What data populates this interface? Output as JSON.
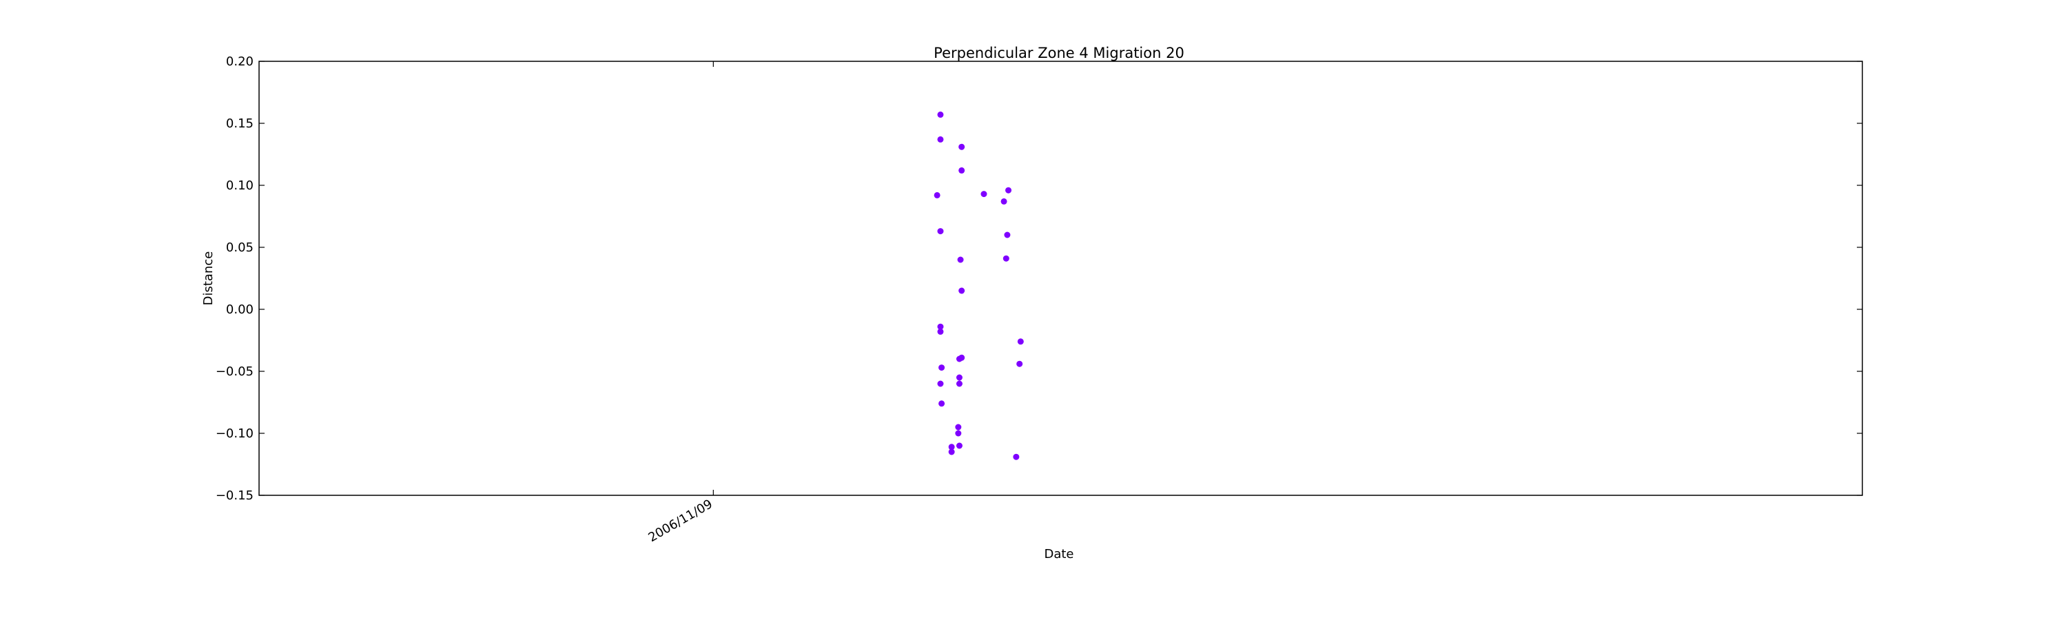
{
  "chart_data": {
    "type": "scatter",
    "title": "Perpendicular Zone 4 Migration 20",
    "xlabel": "Date",
    "ylabel": "Distance",
    "x_axis_type": "date",
    "xlim": [
      "2006-10-23",
      "2006-12-22"
    ],
    "ylim": [
      -0.15,
      0.2
    ],
    "yticks": [
      -0.15,
      -0.1,
      -0.05,
      0.0,
      0.05,
      0.1,
      0.15,
      0.2
    ],
    "ytick_labels": [
      "−0.15",
      "−0.10",
      "−0.05",
      "0.00",
      "0.05",
      "0.10",
      "0.15",
      "0.20"
    ],
    "xticks": [
      "2006-11-09"
    ],
    "xtick_labels": [
      "2006/11/09"
    ],
    "grid": false,
    "marker_color": "#7f00ff",
    "points": [
      {
        "x": "2006-11-17 12:00",
        "y": 0.157
      },
      {
        "x": "2006-11-17 12:00",
        "y": 0.137
      },
      {
        "x": "2006-11-18 07:00",
        "y": 0.131
      },
      {
        "x": "2006-11-18 07:00",
        "y": 0.112
      },
      {
        "x": "2006-11-17 09:00",
        "y": 0.092
      },
      {
        "x": "2006-11-19 03:00",
        "y": 0.093
      },
      {
        "x": "2006-11-19 21:00",
        "y": 0.087
      },
      {
        "x": "2006-11-20 01:00",
        "y": 0.096
      },
      {
        "x": "2006-11-17 12:00",
        "y": 0.063
      },
      {
        "x": "2006-11-20 00:00",
        "y": 0.06
      },
      {
        "x": "2006-11-18 06:00",
        "y": 0.04
      },
      {
        "x": "2006-11-19 23:00",
        "y": 0.041
      },
      {
        "x": "2006-11-18 07:00",
        "y": 0.015
      },
      {
        "x": "2006-11-17 12:00",
        "y": -0.014
      },
      {
        "x": "2006-11-17 12:00",
        "y": -0.018
      },
      {
        "x": "2006-11-20 12:00",
        "y": -0.026
      },
      {
        "x": "2006-11-18 05:00",
        "y": -0.04
      },
      {
        "x": "2006-11-18 07:00",
        "y": -0.039
      },
      {
        "x": "2006-11-17 13:00",
        "y": -0.047
      },
      {
        "x": "2006-11-20 11:00",
        "y": -0.044
      },
      {
        "x": "2006-11-18 05:00",
        "y": -0.055
      },
      {
        "x": "2006-11-17 12:00",
        "y": -0.06
      },
      {
        "x": "2006-11-18 05:00",
        "y": -0.06
      },
      {
        "x": "2006-11-17 13:00",
        "y": -0.076
      },
      {
        "x": "2006-11-18 04:00",
        "y": -0.095
      },
      {
        "x": "2006-11-18 04:00",
        "y": -0.1
      },
      {
        "x": "2006-11-17 22:00",
        "y": -0.111
      },
      {
        "x": "2006-11-18 05:00",
        "y": -0.11
      },
      {
        "x": "2006-11-17 22:00",
        "y": -0.115
      },
      {
        "x": "2006-11-20 08:00",
        "y": -0.119
      }
    ]
  }
}
